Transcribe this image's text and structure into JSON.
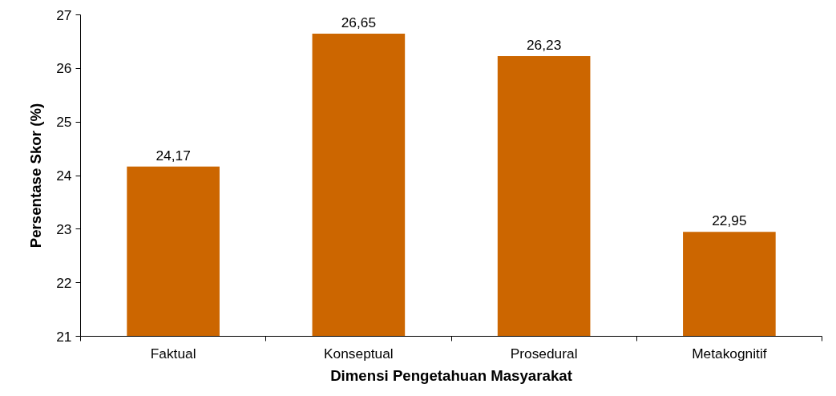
{
  "chart_data": {
    "type": "bar",
    "xlabel": "Dimensi Pengetahuan Masyarakat",
    "ylabel": "Persentase Skor (%)",
    "categories": [
      "Faktual",
      "Konseptual",
      "Prosedural",
      "Metakognitif"
    ],
    "values": [
      24.17,
      26.65,
      26.23,
      22.95
    ],
    "value_labels": [
      "24,17",
      "26,65",
      "26,23",
      "22,95"
    ],
    "color": "#cc6600",
    "ylim": [
      21,
      27
    ],
    "yticks": [
      21,
      22,
      23,
      24,
      25,
      26,
      27
    ],
    "grid": false
  }
}
